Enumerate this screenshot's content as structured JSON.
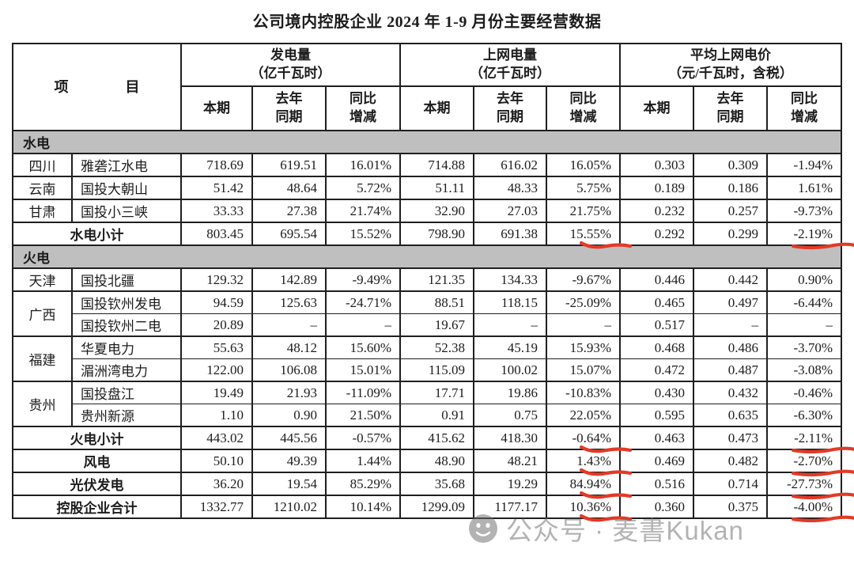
{
  "title": "公司境内控股企业 2024 年 1-9 月份主要经营数据",
  "colors": {
    "section_bg": "#bfbfbf",
    "annotation_red": "#e23a28",
    "watermark_gray": "#6f6f6f",
    "border": "#1f1f1f"
  },
  "table": {
    "item_header": "项　　　　目",
    "groups": [
      {
        "label": "发电量",
        "unit": "（亿千瓦时）"
      },
      {
        "label": "上网电量",
        "unit": "（亿千瓦时）"
      },
      {
        "label": "平均上网电价",
        "unit": "（元/千瓦时，含税）"
      }
    ],
    "sub": {
      "current": "本期",
      "prior": "去年\n同期",
      "yoy": "同比\n增减"
    },
    "rows": [
      {
        "type": "section",
        "label": "水电"
      },
      {
        "type": "data",
        "province": "四川",
        "province_span": 1,
        "company": "雅砻江水电",
        "values": [
          "718.69",
          "619.51",
          "16.01%",
          "714.88",
          "616.02",
          "16.05%",
          "0.303",
          "0.309",
          "-1.94%"
        ]
      },
      {
        "type": "data",
        "province": "云南",
        "province_span": 1,
        "company": "国投大朝山",
        "values": [
          "51.42",
          "48.64",
          "5.72%",
          "51.11",
          "48.33",
          "5.75%",
          "0.189",
          "0.186",
          "1.61%"
        ]
      },
      {
        "type": "data",
        "province": "甘肃",
        "province_span": 1,
        "company": "国投小三峡",
        "values": [
          "33.33",
          "27.38",
          "21.74%",
          "32.90",
          "27.03",
          "21.75%",
          "0.232",
          "0.257",
          "-9.73%"
        ]
      },
      {
        "type": "subtotal",
        "label": "水电小计",
        "values": [
          "803.45",
          "695.54",
          "15.52%",
          "798.90",
          "691.38",
          "15.55%",
          "0.292",
          "0.299",
          "-2.19%"
        ],
        "marks": {
          "5": "short",
          "8": "long"
        }
      },
      {
        "type": "section",
        "label": "火电"
      },
      {
        "type": "data",
        "province": "天津",
        "province_span": 1,
        "company": "国投北疆",
        "values": [
          "129.32",
          "142.89",
          "-9.49%",
          "121.35",
          "134.33",
          "-9.67%",
          "0.446",
          "0.442",
          "0.90%"
        ]
      },
      {
        "type": "data",
        "province": "广西",
        "province_span": 2,
        "company": "国投钦州发电",
        "values": [
          "94.59",
          "125.63",
          "-24.71%",
          "88.51",
          "118.15",
          "-25.09%",
          "0.465",
          "0.497",
          "-6.44%"
        ]
      },
      {
        "type": "data",
        "sub": true,
        "company": "国投钦州二电",
        "values": [
          "20.89",
          "–",
          "–",
          "19.67",
          "–",
          "–",
          "0.517",
          "–",
          "–"
        ]
      },
      {
        "type": "data",
        "province": "福建",
        "province_span": 2,
        "company": "华夏电力",
        "values": [
          "55.63",
          "48.12",
          "15.60%",
          "52.38",
          "45.19",
          "15.93%",
          "0.468",
          "0.486",
          "-3.70%"
        ]
      },
      {
        "type": "data",
        "sub": true,
        "company": "湄洲湾电力",
        "values": [
          "122.00",
          "106.08",
          "15.01%",
          "115.09",
          "100.02",
          "15.07%",
          "0.472",
          "0.487",
          "-3.08%"
        ]
      },
      {
        "type": "data",
        "province": "贵州",
        "province_span": 2,
        "company": "国投盘江",
        "values": [
          "19.49",
          "21.93",
          "-11.09%",
          "17.71",
          "19.86",
          "-10.83%",
          "0.430",
          "0.432",
          "-0.46%"
        ]
      },
      {
        "type": "data",
        "sub": true,
        "company": "贵州新源",
        "values": [
          "1.10",
          "0.90",
          "21.50%",
          "0.91",
          "0.75",
          "22.05%",
          "0.595",
          "0.635",
          "-6.30%"
        ]
      },
      {
        "type": "subtotal",
        "label": "火电小计",
        "values": [
          "443.02",
          "445.56",
          "-0.57%",
          "415.62",
          "418.30",
          "-0.64%",
          "0.463",
          "0.473",
          "-2.11%"
        ],
        "marks": {
          "5": "short",
          "8": "long"
        }
      },
      {
        "type": "subtotal",
        "label": "风电",
        "values": [
          "50.10",
          "49.39",
          "1.44%",
          "48.90",
          "48.21",
          "1.43%",
          "0.469",
          "0.482",
          "-2.70%"
        ],
        "marks": {
          "5": "short",
          "8": "long"
        }
      },
      {
        "type": "subtotal",
        "label": "光伏发电",
        "values": [
          "36.20",
          "19.54",
          "85.29%",
          "35.68",
          "19.29",
          "84.94%",
          "0.516",
          "0.714",
          "-27.73%"
        ],
        "marks": {
          "5": "short",
          "8": "long"
        }
      },
      {
        "type": "subtotal",
        "label": "控股企业合计",
        "values": [
          "1332.77",
          "1210.02",
          "10.14%",
          "1299.09",
          "1177.17",
          "10.36%",
          "0.360",
          "0.375",
          "-4.00%"
        ],
        "marks": {
          "5": "short",
          "8": "long"
        }
      }
    ]
  },
  "watermark": {
    "text": "公众号 · 麦書Kukan",
    "icon": "wechat-icon"
  }
}
